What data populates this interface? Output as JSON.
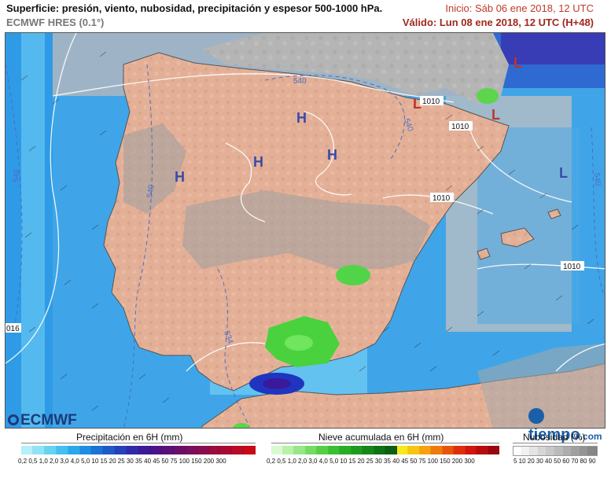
{
  "header": {
    "title": "Superficie: presión, viento, nubosidad, precipitación y espesor 500-1000 hPa.",
    "model": "ECMWF HRES (0.1°)",
    "init": "Inicio: Sáb 06 ene 2018, 12 UTC",
    "valid": "Válido: Lun 08 ene 2018, 12 UTC (H+48)"
  },
  "map": {
    "pressure_centers": [
      {
        "label": "H"
      },
      {
        "label": "H"
      },
      {
        "label": "H"
      },
      {
        "label": "H"
      },
      {
        "label": "L"
      },
      {
        "label": "L"
      },
      {
        "label": "L"
      },
      {
        "label": "L"
      }
    ],
    "isobar_labels": [
      "1010",
      "1010",
      "1010",
      "1010",
      "016"
    ],
    "thickness_labels": [
      "540",
      "540",
      "540",
      "546",
      "534",
      "540"
    ]
  },
  "logos": {
    "ecmwf": "ECMWF",
    "tiempo": "tiempo",
    "tiempo_suffix": ".com"
  },
  "legends": {
    "precip": {
      "title": "Precipitación en 6H (mm)",
      "ticks": "0,2 0,5 1,0 2,0 3,0 4,0 5,0 10  15  20  25  30  35  40  45  50  75 100 150 200 300",
      "colors": [
        "#b4f0fa",
        "#8ee3f7",
        "#66d2f4",
        "#43bff0",
        "#2aa9ea",
        "#1d8ee3",
        "#1a73d6",
        "#1f5bc8",
        "#263fbb",
        "#2e2aa9",
        "#3c1a98",
        "#4a1387",
        "#5a1078",
        "#6a0e6a",
        "#7a0d5c",
        "#8a0c4e",
        "#9a0b40",
        "#aa0a32",
        "#ba0924",
        "#c80816"
      ]
    },
    "snow": {
      "title": "Nieve acumulada en 6H (mm)",
      "ticks": "0,2 0,5 1,0 2,0 3,0 4,0 5,0 10  15  20  25  30  35  40  45  50  75 100 150 200 300",
      "colors": [
        "#d8fad0",
        "#b8f2a8",
        "#96e884",
        "#74dc62",
        "#55cf44",
        "#3bbf32",
        "#28ad26",
        "#1e9a20",
        "#16861a",
        "#0f7214",
        "#0a5f10",
        "#f8e81a",
        "#f8c414",
        "#f8a010",
        "#f07a0e",
        "#e8540c",
        "#e02e0c",
        "#d0140e",
        "#b80a0e",
        "#9a0610"
      ]
    },
    "cloud": {
      "title": "Nubosidad (%)",
      "ticks": "5  10 20 30 40 50 60 70 80 90",
      "colors": [
        "#ffffff",
        "#f2f2f2",
        "#e4e4e4",
        "#d6d6d6",
        "#c8c8c8",
        "#bbbbbb",
        "#adadad",
        "#a0a0a0",
        "#939393",
        "#868686"
      ]
    }
  }
}
